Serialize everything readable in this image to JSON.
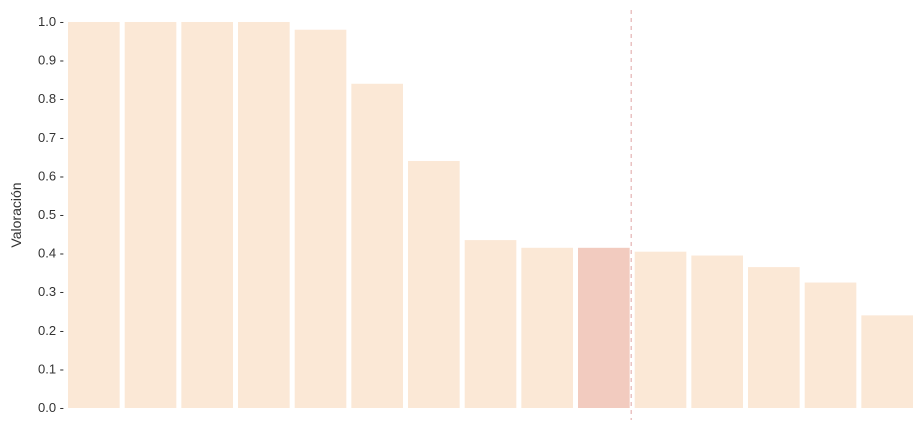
{
  "chart_data": {
    "type": "bar",
    "ylabel": "Valoración",
    "xlabel": "",
    "ylim": [
      0,
      1.0
    ],
    "yticks": [
      "0.0",
      "0.1",
      "0.2",
      "0.3",
      "0.4",
      "0.5",
      "0.6",
      "0.7",
      "0.8",
      "0.9",
      "1.0"
    ],
    "values": [
      1.0,
      1.0,
      1.0,
      1.0,
      0.98,
      0.84,
      0.64,
      0.435,
      0.415,
      0.415,
      0.405,
      0.395,
      0.365,
      0.325,
      0.24
    ],
    "highlight_index": 9,
    "colors": {
      "bar": "#fbe8d6",
      "highlight": "#f2cbbf",
      "reference_line": "#e0a3a3",
      "text": "#333333"
    },
    "reference_line_after_highlight": true,
    "grid": false
  }
}
